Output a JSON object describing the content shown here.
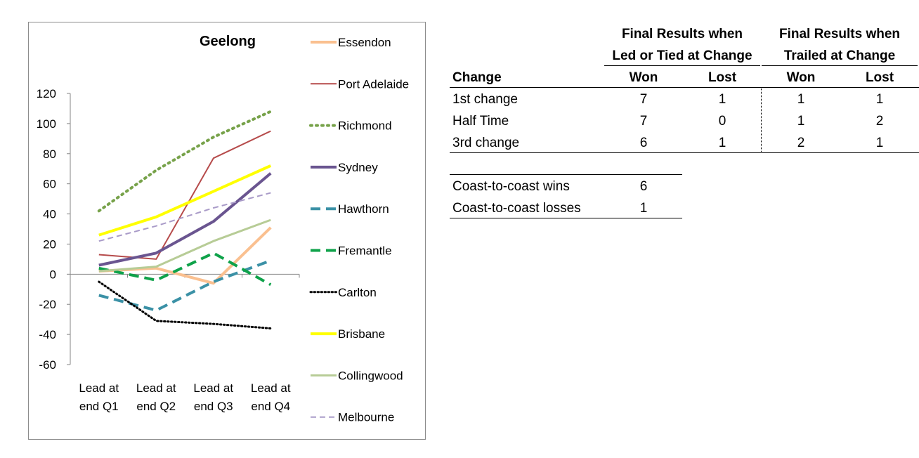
{
  "chart_data": {
    "type": "line",
    "title": "Geelong",
    "categories": [
      "Lead at end Q1",
      "Lead at end Q2",
      "Lead at end Q3",
      "Lead at end Q4"
    ],
    "category_lines": [
      [
        "Lead at",
        "end Q1"
      ],
      [
        "Lead at",
        "end Q2"
      ],
      [
        "Lead at",
        "end Q3"
      ],
      [
        "Lead at",
        "end Q4"
      ]
    ],
    "ylim": [
      -60,
      120
    ],
    "yticks": [
      -60,
      -40,
      -20,
      0,
      20,
      40,
      60,
      80,
      100,
      120
    ],
    "grid": false,
    "legend_position": "right",
    "series": [
      {
        "name": "Essendon",
        "values": [
          2,
          4,
          -6,
          31
        ],
        "color": "#fac090",
        "style": "solid",
        "width": 4
      },
      {
        "name": "Port Adelaide",
        "values": [
          13,
          10,
          77,
          95
        ],
        "color": "#b64b4b",
        "style": "solid",
        "width": 2
      },
      {
        "name": "Richmond",
        "values": [
          42,
          69,
          91,
          108
        ],
        "color": "#77a24a",
        "style": "dotted",
        "width": 4
      },
      {
        "name": "Sydney",
        "values": [
          6,
          14,
          35,
          67
        ],
        "color": "#6a5590",
        "style": "solid",
        "width": 4
      },
      {
        "name": "Hawthorn",
        "values": [
          -14,
          -24,
          -5,
          9
        ],
        "color": "#3b91a6",
        "style": "dashed",
        "width": 4
      },
      {
        "name": "Fremantle",
        "values": [
          4,
          -4,
          14,
          -7
        ],
        "color": "#0fa24a",
        "style": "dashed",
        "width": 4
      },
      {
        "name": "Carlton",
        "values": [
          -5,
          -31,
          -33,
          -36
        ],
        "color": "#000000",
        "style": "dotted",
        "width": 3
      },
      {
        "name": "Brisbane",
        "values": [
          26,
          38,
          55,
          72
        ],
        "color": "#ffff00",
        "style": "solid",
        "width": 4
      },
      {
        "name": "Collingwood",
        "values": [
          2,
          5,
          22,
          36
        ],
        "color": "#b7cc96",
        "style": "solid",
        "width": 3
      },
      {
        "name": "Melbourne",
        "values": [
          22,
          32,
          44,
          54
        ],
        "color": "#a99bc8",
        "style": "dashed",
        "width": 2
      }
    ]
  },
  "results_table": {
    "group_headers": [
      [
        "Final Results when",
        "Led or Tied at Change"
      ],
      [
        "Final Results when",
        "Trailed at Change"
      ]
    ],
    "columns": [
      "Change",
      "Won",
      "Lost",
      "Won",
      "Lost"
    ],
    "rows": [
      {
        "label": "1st change",
        "values": [
          "7",
          "1",
          "1",
          "1"
        ]
      },
      {
        "label": "Half Time",
        "values": [
          "7",
          "0",
          "1",
          "2"
        ]
      },
      {
        "label": "3rd change",
        "values": [
          "6",
          "1",
          "2",
          "1"
        ]
      }
    ]
  },
  "coast_table": {
    "rows": [
      {
        "label": "Coast-to-coast wins",
        "value": "6"
      },
      {
        "label": "Coast-to-coast losses",
        "value": "1"
      }
    ]
  }
}
